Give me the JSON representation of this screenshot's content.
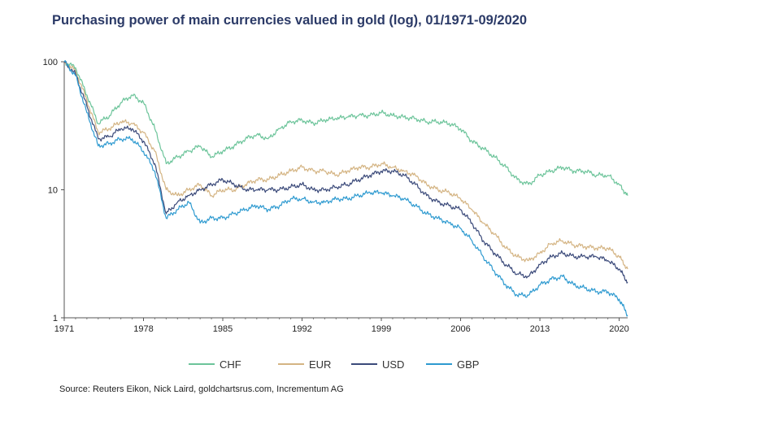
{
  "title": "Purchasing power of main currencies valued in gold (log), 01/1971-09/2020",
  "source": "Source: Reuters Eikon, Nick Laird, goldchartsrus.com, Incrementum AG",
  "chart_data": {
    "type": "line",
    "y_scale": "log",
    "ylim": [
      1,
      100
    ],
    "y_ticks": [
      "100",
      "10",
      "1"
    ],
    "y_tick_values": [
      100,
      10,
      1
    ],
    "xlim": [
      1971,
      2020.75
    ],
    "x_ticks": [
      "1971",
      "1978",
      "1985",
      "1992",
      "1999",
      "2006",
      "2013",
      "2020"
    ],
    "x_tick_values": [
      1971,
      1978,
      1985,
      1992,
      1999,
      2006,
      2013,
      2020
    ],
    "legend_position": "bottom",
    "grid": false,
    "series": [
      {
        "name": "CHF",
        "color": "#6cc49a",
        "x": [
          1971,
          1972,
          1973,
          1974,
          1975,
          1976,
          1977,
          1978,
          1979,
          1980,
          1981,
          1982,
          1983,
          1984,
          1985,
          1986,
          1987,
          1988,
          1989,
          1990,
          1991,
          1992,
          1993,
          1994,
          1995,
          1996,
          1997,
          1998,
          1999,
          2000,
          2001,
          2002,
          2003,
          2004,
          2005,
          2006,
          2007,
          2008,
          2009,
          2010,
          2011,
          2012,
          2013,
          2014,
          2015,
          2016,
          2017,
          2018,
          2019,
          2020,
          2020.75
        ],
        "y": [
          100,
          90,
          55,
          33,
          38,
          48,
          55,
          48,
          30,
          16,
          18,
          20,
          22,
          18,
          20,
          22,
          25,
          27,
          25,
          30,
          34,
          35,
          33,
          35,
          36,
          37,
          38,
          38,
          40,
          38,
          37,
          36,
          34,
          34,
          33,
          30,
          24,
          21,
          18,
          15,
          12,
          11,
          13,
          14,
          15,
          14,
          14,
          13,
          13,
          11,
          9
        ]
      },
      {
        "name": "EUR",
        "color": "#d4b483",
        "x": [
          1971,
          1972,
          1973,
          1974,
          1975,
          1976,
          1977,
          1978,
          1979,
          1980,
          1981,
          1982,
          1983,
          1984,
          1985,
          1986,
          1987,
          1988,
          1989,
          1990,
          1991,
          1992,
          1993,
          1994,
          1995,
          1996,
          1997,
          1998,
          1999,
          2000,
          2001,
          2002,
          2003,
          2004,
          2005,
          2006,
          2007,
          2008,
          2009,
          2010,
          2011,
          2012,
          2013,
          2014,
          2015,
          2016,
          2017,
          2018,
          2019,
          2020,
          2020.75
        ],
        "y": [
          100,
          85,
          50,
          28,
          30,
          34,
          33,
          28,
          20,
          10,
          9,
          10,
          11,
          9,
          10,
          10,
          11,
          12,
          12,
          13,
          14,
          15,
          14,
          14,
          13,
          14,
          15,
          15,
          16,
          15,
          14,
          13,
          11,
          10,
          9.5,
          8.5,
          7,
          5.5,
          4.5,
          3.5,
          3,
          2.8,
          3.2,
          3.8,
          4,
          3.7,
          3.6,
          3.5,
          3.5,
          3,
          2.4
        ]
      },
      {
        "name": "USD",
        "color": "#3b4a7a",
        "x": [
          1971,
          1972,
          1973,
          1974,
          1975,
          1976,
          1977,
          1978,
          1979,
          1980,
          1981,
          1982,
          1983,
          1984,
          1985,
          1986,
          1987,
          1988,
          1989,
          1990,
          1991,
          1992,
          1993,
          1994,
          1995,
          1996,
          1997,
          1998,
          1999,
          2000,
          2001,
          2002,
          2003,
          2004,
          2005,
          2006,
          2007,
          2008,
          2009,
          2010,
          2011,
          2012,
          2013,
          2014,
          2015,
          2016,
          2017,
          2018,
          2019,
          2020,
          2020.75
        ],
        "y": [
          100,
          80,
          45,
          25,
          26,
          30,
          30,
          24,
          16,
          6.5,
          8,
          9,
          10,
          11,
          12,
          11,
          10,
          10,
          10,
          10,
          10.5,
          11,
          10,
          10,
          10.5,
          11,
          12,
          13,
          14,
          14,
          13,
          11,
          9,
          8,
          7.5,
          7,
          5.5,
          4,
          3.2,
          2.6,
          2.2,
          2.1,
          2.6,
          3,
          3.2,
          3,
          3,
          3,
          2.8,
          2.4,
          1.9
        ]
      },
      {
        "name": "GBP",
        "color": "#2e9ad0",
        "x": [
          1971,
          1972,
          1973,
          1974,
          1975,
          1976,
          1977,
          1978,
          1979,
          1980,
          1981,
          1982,
          1983,
          1984,
          1985,
          1986,
          1987,
          1988,
          1989,
          1990,
          1991,
          1992,
          1993,
          1994,
          1995,
          1996,
          1997,
          1998,
          1999,
          2000,
          2001,
          2002,
          2003,
          2004,
          2005,
          2006,
          2007,
          2008,
          2009,
          2010,
          2011,
          2012,
          2013,
          2014,
          2015,
          2016,
          2017,
          2018,
          2019,
          2020,
          2020.75
        ],
        "y": [
          100,
          78,
          40,
          22,
          23,
          25,
          25,
          20,
          14,
          6,
          7,
          8,
          5.5,
          6,
          6,
          6.5,
          7,
          7.5,
          7,
          7.5,
          8.5,
          8.5,
          8,
          8,
          8.5,
          8.5,
          9,
          9.5,
          9.5,
          9,
          8.5,
          7.5,
          6.5,
          6,
          5.5,
          5,
          4,
          3,
          2.3,
          1.8,
          1.5,
          1.5,
          1.8,
          2,
          2.1,
          1.8,
          1.7,
          1.6,
          1.6,
          1.4,
          1.05
        ]
      }
    ]
  }
}
